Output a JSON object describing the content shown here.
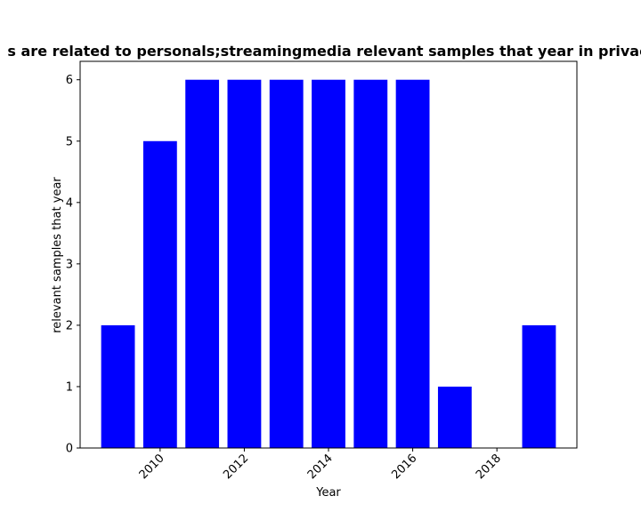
{
  "chart_data": {
    "type": "bar",
    "title": "s are related to personals;streamingmedia relevant samples that year in privac",
    "xlabel": "Year",
    "ylabel": "relevant samples that year",
    "x": [
      2009,
      2010,
      2011,
      2012,
      2013,
      2014,
      2015,
      2016,
      2017,
      2018,
      2019
    ],
    "values": [
      2,
      5,
      6,
      6,
      6,
      6,
      6,
      6,
      1,
      0,
      2
    ],
    "xlim": [
      2008.1,
      2019.9
    ],
    "ylim": [
      0,
      6.3
    ],
    "xticks": [
      "2010",
      "2012",
      "2014",
      "2016",
      "2018"
    ],
    "yticks": [
      "0",
      "1",
      "2",
      "3",
      "4",
      "5",
      "6"
    ],
    "bar_color": "#0000ff",
    "grid": false,
    "legend": "none"
  }
}
